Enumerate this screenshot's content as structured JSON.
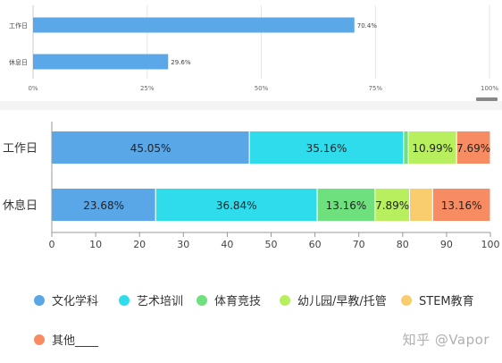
{
  "chart_data": [
    {
      "type": "bar",
      "orientation": "horizontal",
      "categories": [
        "工作日",
        "休息日"
      ],
      "values": [
        70.4,
        29.6
      ],
      "value_labels": [
        "70.4%",
        "29.6%"
      ],
      "xlim": [
        0,
        100
      ],
      "x_ticks": [
        "0%",
        "25%",
        "50%",
        "75%",
        "100%"
      ],
      "grid": true,
      "color": "#5ba8e8"
    },
    {
      "type": "bar",
      "stacked": true,
      "orientation": "horizontal",
      "categories": [
        "工作日",
        "休息日"
      ],
      "series": [
        {
          "name": "文化学科",
          "color": "#5aa7e8",
          "values": [
            45.05,
            23.68
          ],
          "labels": [
            "45.05%",
            "23.68%"
          ]
        },
        {
          "name": "艺术培训",
          "color": "#2fdcec",
          "values": [
            35.16,
            36.84
          ],
          "labels": [
            "35.16%",
            "36.84%"
          ]
        },
        {
          "name": "体育竞技",
          "color": "#6ee07d",
          "values": [
            1.1,
            13.16
          ],
          "labels": [
            "",
            "13.16%"
          ]
        },
        {
          "name": "幼儿园/早教/托管",
          "color": "#b8ef5f",
          "values": [
            10.99,
            7.89
          ],
          "labels": [
            "10.99%",
            "7.89%"
          ]
        },
        {
          "name": "STEM教育",
          "color": "#f9cd6e",
          "values": [
            0,
            5.27
          ],
          "labels": [
            "",
            ""
          ]
        },
        {
          "name": "其他____",
          "color": "#f78c63",
          "values": [
            7.69,
            13.16
          ],
          "labels": [
            "7.69%",
            "13.16%"
          ]
        }
      ],
      "xlim": [
        0,
        100
      ],
      "x_ticks": [
        0,
        10,
        20,
        30,
        40,
        50,
        60,
        70,
        80,
        90,
        100
      ],
      "grid": false,
      "legend_position": "bottom"
    }
  ],
  "watermark": "知乎 @Vapor"
}
